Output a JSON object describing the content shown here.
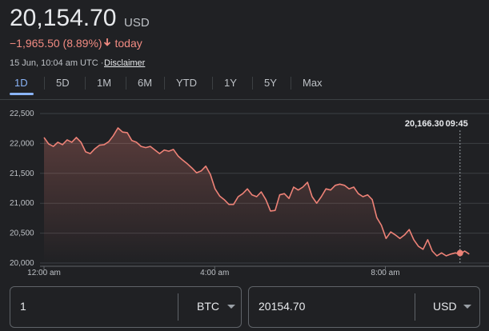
{
  "header": {
    "price": "20,154.70",
    "currency": "USD",
    "change": "−1,965.50 (8.89%)",
    "period": "today",
    "timestamp": "15 Jun, 10:04 am UTC ·",
    "disclaimer": "Disclaimer"
  },
  "tabs": [
    "1D",
    "5D",
    "1M",
    "6M",
    "YTD",
    "1Y",
    "5Y",
    "Max"
  ],
  "chart_data": {
    "type": "line",
    "color": "#ee8277",
    "grid": true,
    "x": [
      0,
      6.5,
      13,
      19.5,
      26,
      32.5,
      39,
      45.5,
      52,
      58.5,
      65,
      71.5,
      78,
      84.5,
      91,
      97.5,
      104,
      110.5,
      117,
      123.5,
      130,
      136.5,
      143,
      149.5,
      156,
      162.5,
      169,
      175.5,
      182,
      188.5,
      195,
      201.5,
      208,
      214.5,
      221,
      227.5,
      234,
      240.5,
      247,
      253.5,
      260,
      266.5,
      273,
      279.5,
      286,
      292.5,
      299,
      305.5,
      312,
      318.5,
      325,
      331.5,
      338,
      344.5,
      351,
      357.5,
      364,
      370.5,
      377,
      383.5,
      390,
      396.5,
      403,
      409.5,
      416,
      422.5,
      429,
      435.5,
      442,
      448.5,
      455,
      461.5,
      468,
      474.5,
      481,
      487.5,
      494,
      500.5,
      507,
      513.5,
      520,
      526.5,
      533,
      539.5,
      546,
      552.5,
      559,
      565.5,
      572,
      578.5,
      585,
      591.5,
      598
    ],
    "values": [
      22100,
      21990,
      21950,
      22020,
      21980,
      22060,
      22020,
      22100,
      22020,
      21860,
      21830,
      21910,
      21970,
      21980,
      22030,
      22130,
      22260,
      22190,
      22180,
      22050,
      22020,
      21950,
      21930,
      21950,
      21890,
      21830,
      21890,
      21870,
      21900,
      21790,
      21720,
      21660,
      21590,
      21510,
      21540,
      21620,
      21480,
      21240,
      21120,
      21060,
      20980,
      20980,
      21110,
      21160,
      21240,
      21140,
      21110,
      21190,
      21060,
      20870,
      20880,
      21140,
      21160,
      21080,
      21270,
      21220,
      21270,
      21350,
      21110,
      21000,
      21110,
      21240,
      21220,
      21300,
      21320,
      21300,
      21240,
      21270,
      21160,
      21110,
      21140,
      21060,
      20760,
      20630,
      20410,
      20520,
      20470,
      20410,
      20470,
      20560,
      20390,
      20280,
      20230,
      20390,
      20200,
      20120,
      20170,
      20120,
      20150,
      20170,
      20150,
      20200,
      20150
    ],
    "xlim": [
      0,
      610
    ],
    "xticks": [
      {
        "value": 0,
        "label": "12:00 am"
      },
      {
        "value": 240,
        "label": "4:00 am"
      },
      {
        "value": 480,
        "label": "8:00 am"
      }
    ],
    "ylim": [
      20000,
      22500
    ],
    "yticks": [
      {
        "value": 20000,
        "label": "20,000"
      },
      {
        "value": 20500,
        "label": "20,500"
      },
      {
        "value": 21000,
        "label": "21,000"
      },
      {
        "value": 21500,
        "label": "21,500"
      },
      {
        "value": 22000,
        "label": "22,000"
      },
      {
        "value": 22500,
        "label": "22,500"
      }
    ],
    "hover": {
      "x": 585,
      "value": 20166.3,
      "value_label": "20,166.30",
      "time": "09:45"
    }
  },
  "converter": {
    "amount": "1",
    "unit": "BTC",
    "result": "20154.70",
    "result_unit": "USD"
  }
}
